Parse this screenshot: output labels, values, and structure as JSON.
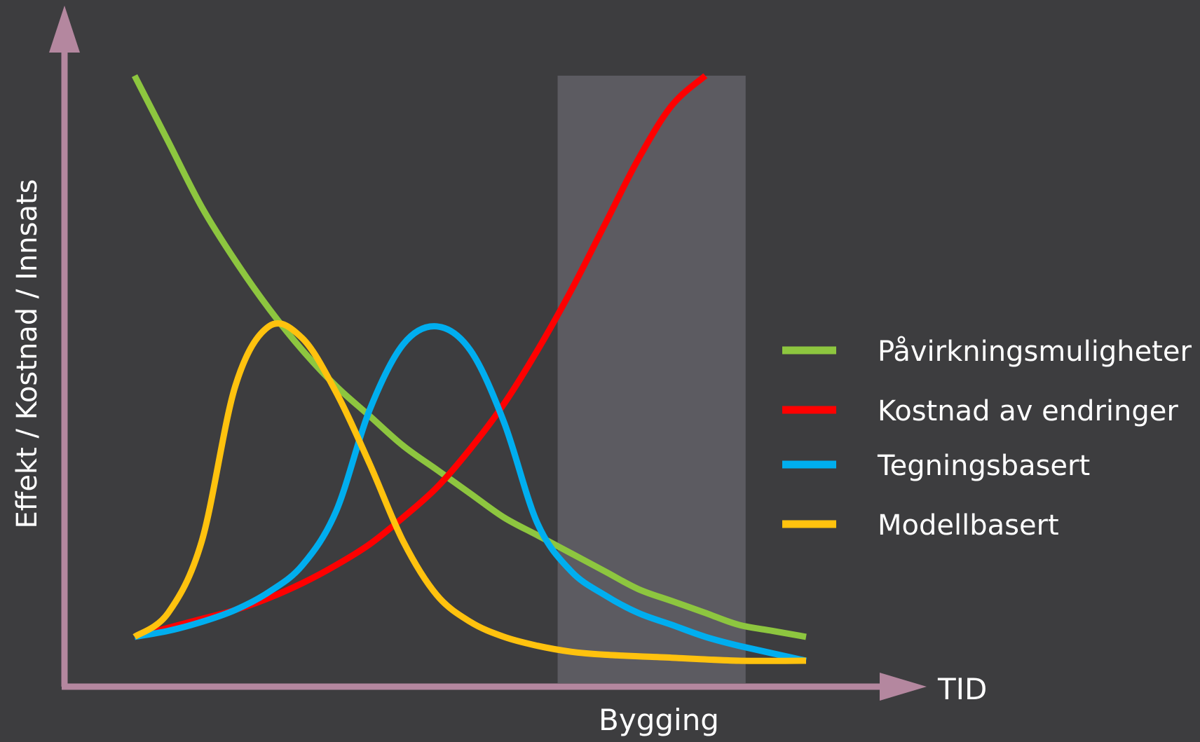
{
  "chart_data": {
    "type": "line",
    "title": "",
    "xlabel": "TID",
    "ylabel": "Effekt / Kostnad / Innsats",
    "xlim": [
      0,
      100
    ],
    "ylim": [
      0,
      100
    ],
    "grid": false,
    "legend_position": "right",
    "highlight_band": {
      "label": "Bygging",
      "x_start": 63,
      "x_end": 91,
      "color": "#5c5b61"
    },
    "series": [
      {
        "name": "Påvirkningsmuligheter",
        "color": "#8dc63f",
        "points": [
          [
            0,
            100
          ],
          [
            5,
            89
          ],
          [
            10,
            78
          ],
          [
            15,
            69
          ],
          [
            20,
            61
          ],
          [
            25,
            54
          ],
          [
            30,
            48
          ],
          [
            35,
            43
          ],
          [
            40,
            38
          ],
          [
            45,
            34
          ],
          [
            50,
            30
          ],
          [
            55,
            26
          ],
          [
            60,
            23
          ],
          [
            65,
            20
          ],
          [
            70,
            17
          ],
          [
            75,
            14
          ],
          [
            80,
            12
          ],
          [
            85,
            10
          ],
          [
            90,
            8
          ],
          [
            95,
            7
          ],
          [
            100,
            6
          ]
        ]
      },
      {
        "name": "Kostnad av endringer",
        "color": "#ff0000",
        "points": [
          [
            0,
            6
          ],
          [
            5,
            7.5
          ],
          [
            10,
            9
          ],
          [
            15,
            10.5
          ],
          [
            20,
            12.5
          ],
          [
            25,
            15
          ],
          [
            30,
            18
          ],
          [
            35,
            21.5
          ],
          [
            40,
            26
          ],
          [
            45,
            31
          ],
          [
            50,
            37.5
          ],
          [
            55,
            45
          ],
          [
            60,
            54
          ],
          [
            65,
            64
          ],
          [
            70,
            75
          ],
          [
            75,
            86
          ],
          [
            80,
            95
          ],
          [
            85,
            100
          ]
        ]
      },
      {
        "name": "Tegningsbasert",
        "color": "#00aeef",
        "points": [
          [
            0,
            6
          ],
          [
            5,
            7
          ],
          [
            10,
            8.5
          ],
          [
            15,
            10.5
          ],
          [
            20,
            13.5
          ],
          [
            25,
            18
          ],
          [
            30,
            27
          ],
          [
            35,
            44
          ],
          [
            40,
            55
          ],
          [
            45,
            58
          ],
          [
            50,
            54
          ],
          [
            55,
            42
          ],
          [
            60,
            25
          ],
          [
            65,
            17
          ],
          [
            70,
            13
          ],
          [
            75,
            10
          ],
          [
            80,
            8
          ],
          [
            85,
            6
          ],
          [
            90,
            4.5
          ],
          [
            100,
            2
          ]
        ]
      },
      {
        "name": "Modellbasert",
        "color": "#ffc20e",
        "points": [
          [
            0,
            6
          ],
          [
            5,
            10
          ],
          [
            10,
            22
          ],
          [
            15,
            48
          ],
          [
            20,
            58
          ],
          [
            25,
            56
          ],
          [
            30,
            47
          ],
          [
            35,
            35
          ],
          [
            40,
            22
          ],
          [
            45,
            13
          ],
          [
            50,
            8.5
          ],
          [
            55,
            6
          ],
          [
            60,
            4.5
          ],
          [
            65,
            3.5
          ],
          [
            70,
            3
          ],
          [
            80,
            2.5
          ],
          [
            90,
            2
          ],
          [
            100,
            2
          ]
        ]
      }
    ]
  }
}
